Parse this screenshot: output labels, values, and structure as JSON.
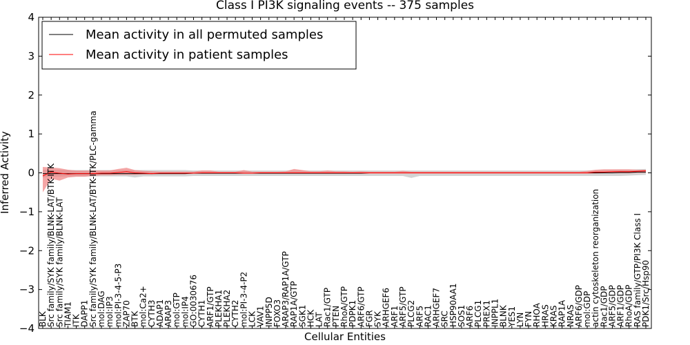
{
  "chart_data": {
    "type": "line",
    "title": "Class I PI3K signaling events -- 375 samples",
    "xlabel": "Cellular Entities",
    "ylabel": "Inferred Activity",
    "ylim": [
      -4,
      4
    ],
    "yticks": [
      -4,
      -3,
      -2,
      -1,
      0,
      1,
      2,
      3,
      4
    ],
    "ytick_labels": [
      "−4",
      "−3",
      "−2",
      "−1",
      "0",
      "1",
      "2",
      "3",
      "4"
    ],
    "grid": false,
    "legend": "top-left",
    "categories": [
      "BLK",
      "Src family/SYK family/BLNK-LAT/BTK-ITK",
      "Src family/SYK family/BLNK-LAT",
      "TIAM1",
      "ITK",
      "DAPP1",
      "Src family/SYK family/BLNK-LAT/BTK-ITK/PLC-gamma",
      "mol:DAG",
      "mol:IP3",
      "mol:PI-3-4-5-P3",
      "ZAP70",
      "BTK",
      "mol:Ca2+",
      "CYTH3",
      "ADAP1",
      "ARAP3",
      "mol:GTP",
      "mol:IP4",
      "GO:0030676",
      "CYTH1",
      "ARF1/GTP",
      "PLEKHA1",
      "PLEKHA2",
      "CYTH2",
      "mol:PI-3-4-P2",
      "LCK",
      "VAV1",
      "INPP5D",
      "FOXO3",
      "ARAP3/RAP1A/GTP",
      "RAP1A/GTP",
      "SGK1",
      "HCK",
      "LAT",
      "Rac1/GTP",
      "PTEN",
      "RhoA/GTP",
      "PDPK1",
      "ARF6/GTP",
      "FGR",
      "SYK",
      "ARHGEF6",
      "ARF1",
      "ARF5/GTP",
      "PLCG2",
      "ARF5",
      "RAC1",
      "ARHGEF7",
      "SRC",
      "HSP90AA1",
      "SOS1",
      "ARF6",
      "PLCG1",
      "PREX1",
      "INPPL1",
      "BLNK",
      "YES1",
      "LYN",
      "FYN",
      "RHOA",
      "HRAS",
      "KRAS",
      "RAP1A",
      "NRAS",
      "ARF6/GDP",
      "mol:GDP",
      "actin cytoskeleton reorganization",
      "Rac1/GDP",
      "ARF5/GDP",
      "ARF1/GDP",
      "RhoA/GDP",
      "RAS family/GTP/PI3K Class I",
      "PDK1/Src/Hsp90"
    ],
    "series": [
      {
        "name": "Mean activity in all permuted samples",
        "color": "#000000",
        "values": [
          -0.02,
          -0.02,
          -0.02,
          -0.02,
          -0.02,
          -0.02,
          -0.02,
          -0.02,
          -0.02,
          -0.02,
          -0.02,
          -0.02,
          -0.02,
          -0.02,
          -0.02,
          -0.02,
          -0.02,
          -0.02,
          -0.01,
          -0.01,
          -0.01,
          -0.01,
          -0.01,
          -0.01,
          -0.01,
          -0.01,
          -0.01,
          -0.01,
          -0.01,
          -0.01,
          -0.01,
          -0.01,
          -0.01,
          -0.01,
          -0.01,
          -0.01,
          -0.01,
          -0.01,
          -0.01,
          0.0,
          0.0,
          0.0,
          0.0,
          0.0,
          0.0,
          0.0,
          0.0,
          0.0,
          0.0,
          0.0,
          0.0,
          0.0,
          0.0,
          0.0,
          0.0,
          0.0,
          0.0,
          0.0,
          0.0,
          0.0,
          0.0,
          0.0,
          0.0,
          0.0,
          0.0,
          0.0,
          0.0,
          0.0,
          0.0,
          0.01,
          0.01,
          0.02,
          0.02
        ],
        "band_low": [
          -0.12,
          -0.1,
          -0.1,
          -0.09,
          -0.09,
          -0.09,
          -0.09,
          -0.09,
          -0.09,
          -0.09,
          -0.09,
          -0.12,
          -0.09,
          -0.09,
          -0.09,
          -0.09,
          -0.09,
          -0.09,
          -0.08,
          -0.08,
          -0.08,
          -0.08,
          -0.08,
          -0.08,
          -0.08,
          -0.08,
          -0.08,
          -0.08,
          -0.08,
          -0.08,
          -0.08,
          -0.08,
          -0.08,
          -0.08,
          -0.08,
          -0.08,
          -0.08,
          -0.08,
          -0.08,
          -0.08,
          -0.08,
          -0.08,
          -0.08,
          -0.08,
          -0.13,
          -0.08,
          -0.08,
          -0.08,
          -0.08,
          -0.08,
          -0.08,
          -0.08,
          -0.08,
          -0.08,
          -0.08,
          -0.08,
          -0.08,
          -0.08,
          -0.08,
          -0.08,
          -0.08,
          -0.08,
          -0.08,
          -0.08,
          -0.08,
          -0.08,
          -0.08,
          -0.08,
          -0.08,
          -0.08,
          -0.07,
          -0.06,
          -0.05
        ],
        "band_high": [
          0.08,
          0.08,
          0.08,
          0.07,
          0.07,
          0.07,
          0.07,
          0.07,
          0.07,
          0.07,
          0.07,
          0.07,
          0.07,
          0.07,
          0.07,
          0.07,
          0.07,
          0.07,
          0.06,
          0.06,
          0.06,
          0.06,
          0.06,
          0.06,
          0.06,
          0.06,
          0.06,
          0.06,
          0.06,
          0.06,
          0.06,
          0.06,
          0.06,
          0.06,
          0.06,
          0.06,
          0.06,
          0.06,
          0.06,
          0.06,
          0.06,
          0.06,
          0.06,
          0.06,
          0.06,
          0.06,
          0.06,
          0.06,
          0.06,
          0.06,
          0.06,
          0.06,
          0.06,
          0.06,
          0.06,
          0.06,
          0.06,
          0.06,
          0.06,
          0.06,
          0.06,
          0.06,
          0.06,
          0.06,
          0.06,
          0.06,
          0.06,
          0.07,
          0.07,
          0.08,
          0.08,
          0.09,
          0.1
        ]
      },
      {
        "name": "Mean activity in patient samples",
        "color": "#ff0000",
        "values": [
          -0.08,
          0.02,
          -0.01,
          -0.03,
          -0.02,
          -0.02,
          -0.02,
          -0.01,
          -0.01,
          0.01,
          0.03,
          0.0,
          -0.01,
          -0.02,
          -0.01,
          -0.01,
          -0.01,
          -0.01,
          -0.01,
          0.0,
          0.0,
          0.0,
          0.0,
          0.0,
          -0.01,
          -0.01,
          0.0,
          0.0,
          0.0,
          0.0,
          0.0,
          0.0,
          0.0,
          0.0,
          0.0,
          0.0,
          0.0,
          0.0,
          0.0,
          0.0,
          0.0,
          0.0,
          0.0,
          0.0,
          0.0,
          0.0,
          0.0,
          0.0,
          0.0,
          0.0,
          0.0,
          0.0,
          0.0,
          0.0,
          0.0,
          0.0,
          0.0,
          0.0,
          0.0,
          0.0,
          0.0,
          0.0,
          0.0,
          0.0,
          0.0,
          0.0,
          0.02,
          0.02,
          0.03,
          0.03,
          0.03,
          0.04,
          0.05
        ],
        "band_low": [
          -0.5,
          -0.15,
          -0.2,
          -0.12,
          -0.1,
          -0.1,
          -0.08,
          -0.06,
          -0.06,
          -0.05,
          -0.05,
          -0.05,
          -0.04,
          -0.04,
          -0.03,
          -0.03,
          -0.03,
          -0.03,
          -0.02,
          -0.02,
          -0.02,
          -0.02,
          -0.02,
          -0.02,
          -0.02,
          -0.02,
          -0.02,
          -0.02,
          -0.02,
          -0.02,
          -0.02,
          -0.02,
          -0.02,
          -0.02,
          -0.02,
          -0.02,
          -0.02,
          -0.02,
          -0.02,
          -0.02,
          -0.02,
          -0.02,
          -0.02,
          -0.02,
          -0.02,
          -0.02,
          -0.02,
          -0.02,
          -0.02,
          -0.02,
          -0.02,
          -0.02,
          -0.02,
          -0.02,
          -0.02,
          -0.02,
          -0.02,
          -0.02,
          -0.02,
          -0.02,
          -0.02,
          -0.02,
          -0.02,
          -0.02,
          -0.02,
          -0.02,
          -0.02,
          -0.01,
          -0.01,
          -0.01,
          -0.01,
          0.0,
          0.0
        ],
        "band_high": [
          0.15,
          0.14,
          0.12,
          0.08,
          0.06,
          0.06,
          0.06,
          0.06,
          0.06,
          0.1,
          0.13,
          0.07,
          0.05,
          0.04,
          0.03,
          0.03,
          0.03,
          0.03,
          0.03,
          0.06,
          0.06,
          0.03,
          0.03,
          0.03,
          0.07,
          0.03,
          0.03,
          0.03,
          0.03,
          0.04,
          0.1,
          0.07,
          0.04,
          0.04,
          0.06,
          0.04,
          0.04,
          0.03,
          0.04,
          0.03,
          0.03,
          0.03,
          0.03,
          0.05,
          0.03,
          0.03,
          0.03,
          0.03,
          0.03,
          0.03,
          0.03,
          0.03,
          0.03,
          0.03,
          0.03,
          0.03,
          0.03,
          0.03,
          0.03,
          0.03,
          0.03,
          0.03,
          0.03,
          0.03,
          0.03,
          0.05,
          0.08,
          0.09,
          0.09,
          0.09,
          0.09,
          0.08,
          0.08
        ]
      }
    ]
  }
}
